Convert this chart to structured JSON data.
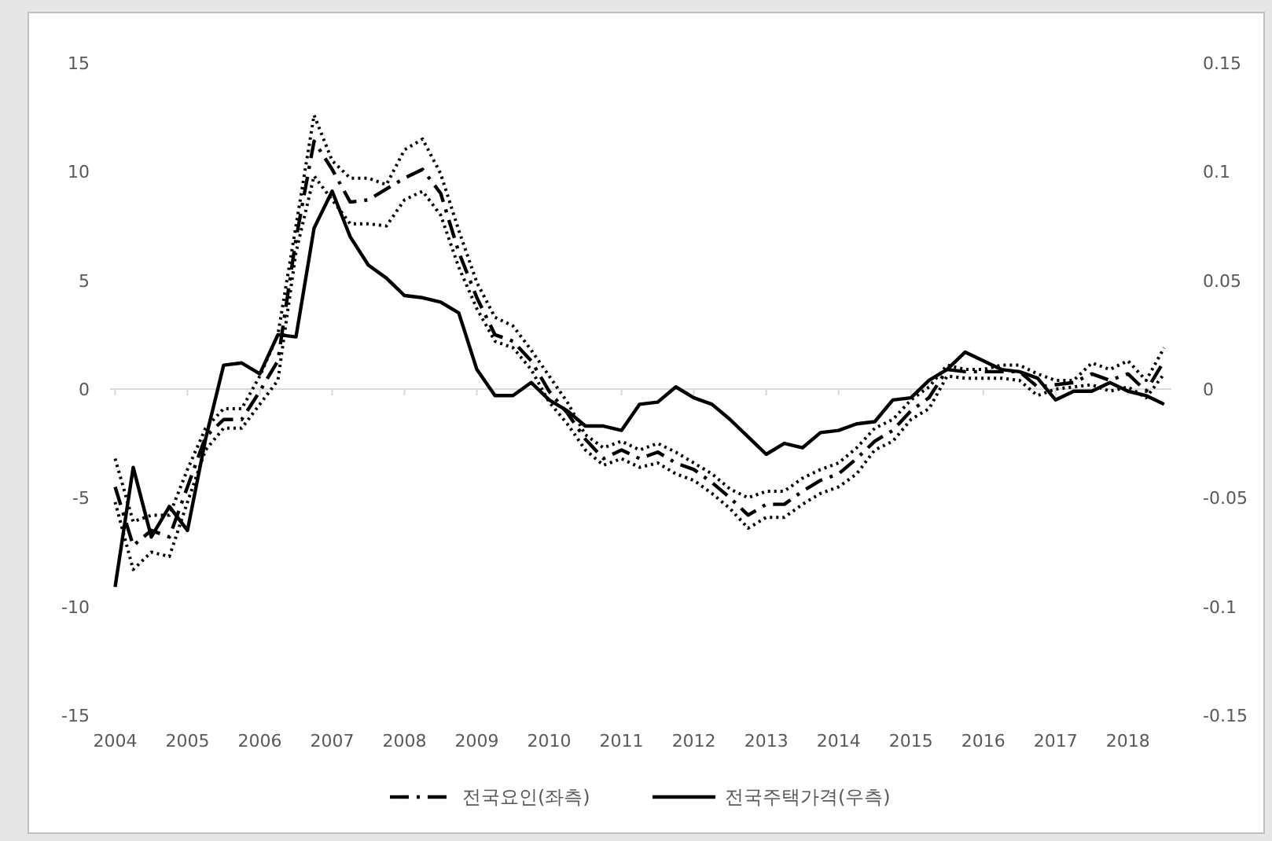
{
  "chart_data": {
    "type": "line",
    "x": [
      2004,
      2004.25,
      2004.5,
      2004.75,
      2005,
      2005.25,
      2005.5,
      2005.75,
      2006,
      2006.25,
      2006.5,
      2006.75,
      2007,
      2007.25,
      2007.5,
      2007.75,
      2008,
      2008.25,
      2008.5,
      2008.75,
      2009,
      2009.25,
      2009.5,
      2009.75,
      2010,
      2010.25,
      2010.5,
      2010.75,
      2011,
      2011.25,
      2011.5,
      2011.75,
      2012,
      2012.25,
      2012.5,
      2012.75,
      2013,
      2013.25,
      2013.5,
      2013.75,
      2014,
      2014.25,
      2014.5,
      2014.75,
      2015,
      2015.25,
      2015.5,
      2015.75,
      2016,
      2016.25,
      2016.5,
      2016.75,
      2017,
      2017.25,
      2017.5,
      2017.75,
      2018,
      2018.25,
      2018.5
    ],
    "series": [
      {
        "name": "전국요인(좌측)",
        "color": "#000000",
        "line_style": "dashed",
        "values": [
          -4.5,
          -7.2,
          -6.5,
          -6.8,
          -4.5,
          -2.2,
          -1.4,
          -1.4,
          -0.1,
          1.3,
          6.9,
          11.4,
          10.1,
          8.6,
          8.7,
          9.2,
          9.7,
          10.1,
          9.0,
          6.3,
          4.2,
          2.5,
          2.2,
          1.3,
          -0.1,
          -1.1,
          -2.3,
          -3.2,
          -2.8,
          -3.2,
          -2.9,
          -3.4,
          -3.7,
          -4.3,
          -5.0,
          -5.8,
          -5.3,
          -5.3,
          -4.7,
          -4.2,
          -3.9,
          -3.2,
          -2.4,
          -1.9,
          -1.0,
          -0.4,
          0.9,
          0.8,
          0.8,
          0.8,
          0.8,
          0.1,
          0.2,
          0.3,
          0.7,
          0.4,
          0.7,
          -0.1,
          1.3
        ]
      },
      {
        "color": "#000000",
        "line_style": "dotted",
        "values": [
          -3.2,
          -6.1,
          -5.8,
          -5.8,
          -3.7,
          -1.8,
          -0.9,
          -0.9,
          0.6,
          2.5,
          7.5,
          12.6,
          10.5,
          9.7,
          9.7,
          9.4,
          11.0,
          11.5,
          9.9,
          7.3,
          4.9,
          3.3,
          2.9,
          1.8,
          0.6,
          -0.6,
          -2.1,
          -2.7,
          -2.4,
          -2.8,
          -2.5,
          -2.9,
          -3.4,
          -3.9,
          -4.6,
          -5.0,
          -4.7,
          -4.7,
          -4.1,
          -3.7,
          -3.4,
          -2.7,
          -1.8,
          -1.4,
          -0.5,
          0.1,
          1.1,
          0.9,
          0.9,
          1.1,
          1.1,
          0.7,
          0.4,
          0.4,
          1.2,
          0.9,
          1.3,
          0.4,
          1.9
        ]
      },
      {
        "color": "#000000",
        "line_style": "dotted",
        "values": [
          -5.2,
          -8.3,
          -7.5,
          -7.7,
          -5.2,
          -2.8,
          -1.8,
          -1.8,
          -0.7,
          0.4,
          6.3,
          9.8,
          8.7,
          7.6,
          7.6,
          7.5,
          8.7,
          9.1,
          8.0,
          5.6,
          3.7,
          2.2,
          1.9,
          0.9,
          -0.6,
          -1.6,
          -2.8,
          -3.5,
          -3.2,
          -3.6,
          -3.4,
          -3.9,
          -4.2,
          -4.8,
          -5.5,
          -6.4,
          -5.9,
          -5.9,
          -5.3,
          -4.8,
          -4.5,
          -3.9,
          -2.8,
          -2.4,
          -1.4,
          -0.9,
          0.6,
          0.5,
          0.5,
          0.5,
          0.4,
          -0.3,
          0,
          0.1,
          0.2,
          -0.1,
          0.1,
          -0.4,
          0.7
        ]
      },
      {
        "name": "전국주택가격(우측)",
        "color": "#000000",
        "line_style": "solid",
        "axis": "y2",
        "values": [
          -0.091,
          -0.036,
          -0.068,
          -0.054,
          -0.065,
          -0.023,
          0.011,
          0.012,
          0.007,
          0.025,
          0.024,
          0.074,
          0.091,
          0.07,
          0.057,
          0.051,
          0.043,
          0.042,
          0.04,
          0.035,
          0.009,
          -0.003,
          -0.003,
          0.003,
          -0.005,
          -0.01,
          -0.017,
          -0.017,
          -0.019,
          -0.007,
          -0.006,
          0.001,
          -0.004,
          -0.007,
          -0.014,
          -0.022,
          -0.03,
          -0.025,
          -0.027,
          -0.02,
          -0.019,
          -0.016,
          -0.015,
          -0.005,
          -0.004,
          0.004,
          0.009,
          0.017,
          0.013,
          0.009,
          0.008,
          0.005,
          -0.005,
          -0.001,
          -0.001,
          0.003,
          -0.001,
          -0.003,
          -0.007
        ]
      }
    ],
    "xlim": [
      2003.93,
      2018.6
    ],
    "xticks": [
      2004,
      2005,
      2006,
      2007,
      2008,
      2009,
      2010,
      2011,
      2012,
      2013,
      2014,
      2015,
      2016,
      2017,
      2018
    ],
    "ylim": [
      -15,
      15
    ],
    "yticks": [
      -15,
      -10,
      -5,
      0,
      5,
      10,
      15
    ],
    "y2lim": [
      -0.15,
      0.15
    ],
    "y2ticks": [
      -0.15,
      -0.1,
      -0.05,
      0,
      0.05,
      0.1,
      0.15
    ],
    "legend": "bottom"
  }
}
